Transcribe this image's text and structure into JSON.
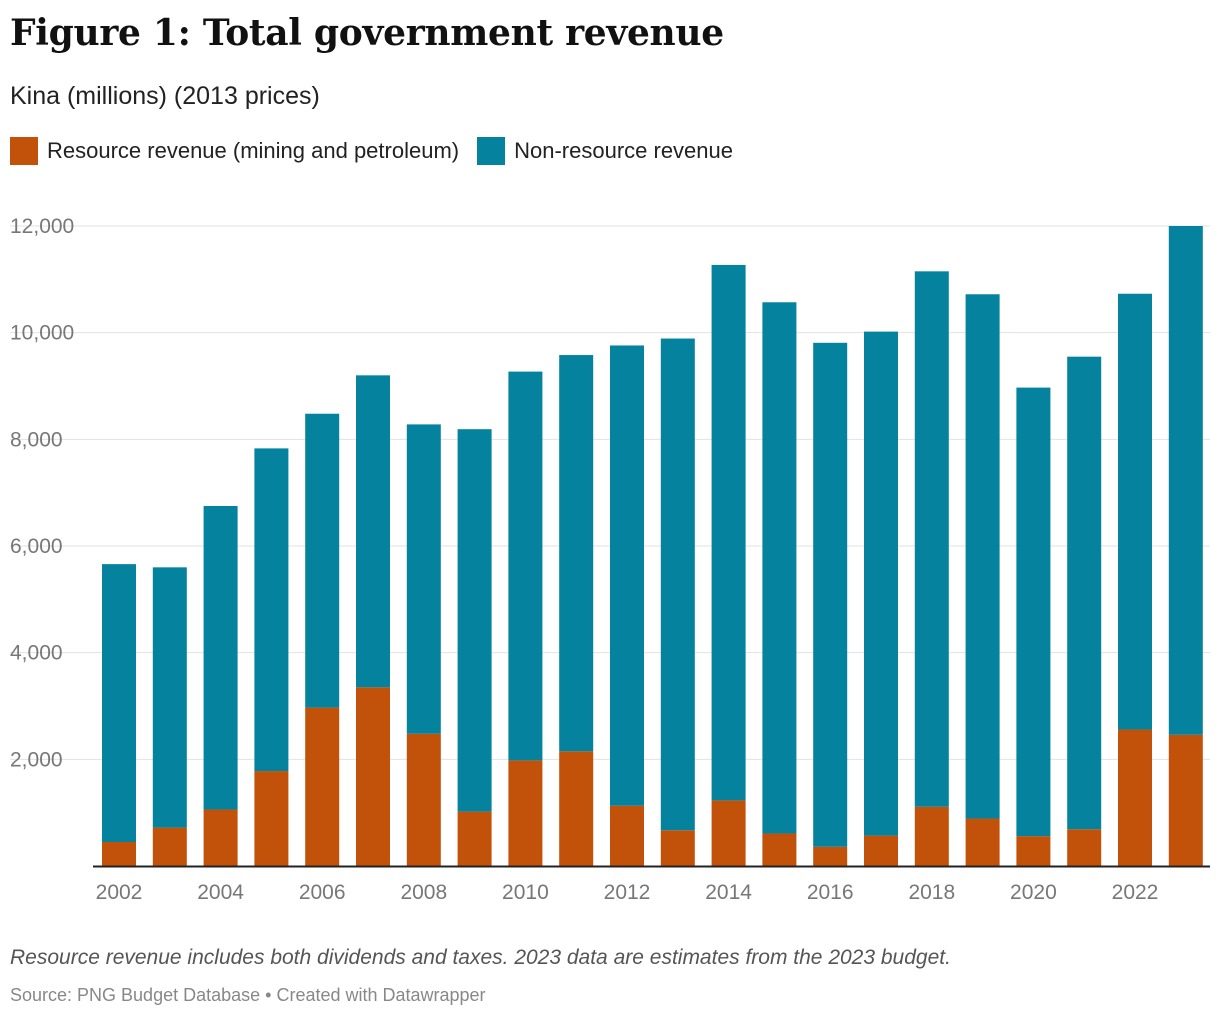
{
  "title": "Figure 1: Total government revenue",
  "subtitle": "Kina (millions) (2013 prices)",
  "footer": {
    "note": "Resource revenue includes both dividends and taxes. 2023 data are estimates from the 2023 budget.",
    "source": "Source: PNG Budget Database • Created with Datawrapper"
  },
  "colors": {
    "resource": "#c2510a",
    "non_resource": "#04829e",
    "grid": "#e2e2e2",
    "axis": "#222222"
  },
  "chart_data": {
    "type": "bar",
    "stacked": true,
    "title": "Figure 1: Total government revenue",
    "subtitle": "Kina (millions) (2013 prices)",
    "x": [
      2002,
      2003,
      2004,
      2005,
      2006,
      2007,
      2008,
      2009,
      2010,
      2011,
      2012,
      2013,
      2014,
      2015,
      2016,
      2017,
      2018,
      2019,
      2020,
      2021,
      2022,
      2023
    ],
    "x_tick_labels": [
      "2002",
      "2004",
      "2006",
      "2008",
      "2010",
      "2012",
      "2014",
      "2016",
      "2018",
      "2020",
      "2022"
    ],
    "series": [
      {
        "name": "Resource revenue (mining and petroleum)",
        "color": "#c2510a",
        "values": [
          450,
          720,
          1060,
          1780,
          2970,
          3350,
          2480,
          1020,
          1980,
          2150,
          1130,
          670,
          1230,
          610,
          360,
          570,
          1110,
          890,
          560,
          690,
          2560,
          2460
        ]
      },
      {
        "name": "Non-resource revenue",
        "color": "#04829e",
        "values": [
          5210,
          4880,
          5690,
          6050,
          5510,
          5850,
          5800,
          7170,
          7290,
          7430,
          8630,
          9220,
          10040,
          9960,
          9450,
          9450,
          10040,
          9830,
          8410,
          8860,
          8170,
          9540
        ]
      }
    ],
    "ylim": [
      0,
      12000
    ],
    "y_ticks": [
      "2,000",
      "4,000",
      "6,000",
      "8,000",
      "10,000",
      "12,000"
    ],
    "grid": true,
    "legend_position": "top-left"
  }
}
